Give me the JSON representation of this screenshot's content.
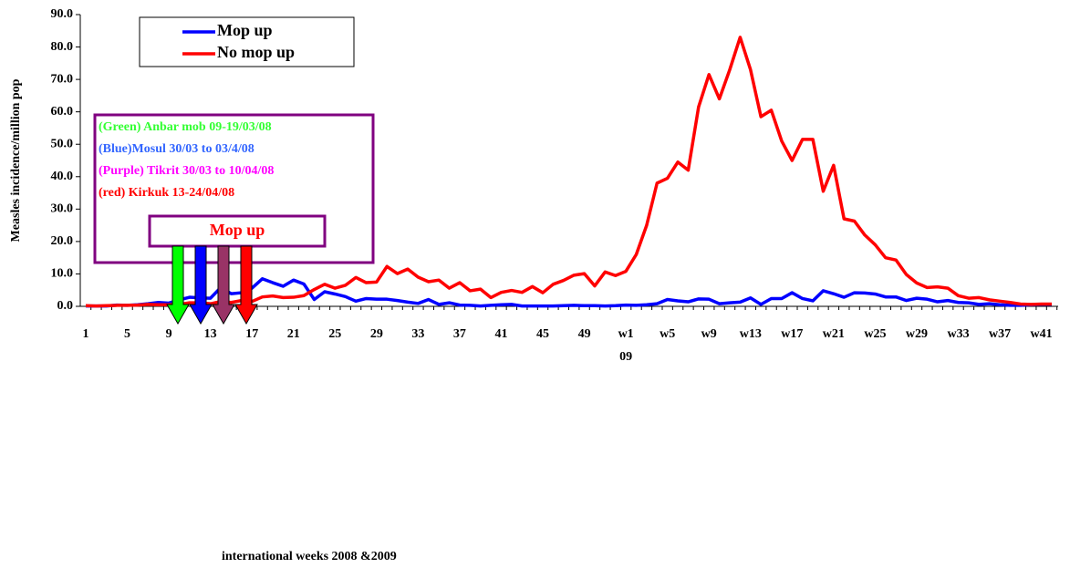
{
  "chart_data": {
    "type": "line",
    "ylabel": "Measles incidence/million pop",
    "xlabel": "international weeks 2008 &2009",
    "year_label": "09",
    "categories": [
      "1",
      null,
      null,
      null,
      "5",
      null,
      null,
      null,
      "9",
      null,
      null,
      null,
      "13",
      null,
      null,
      null,
      "17",
      null,
      null,
      null,
      "21",
      null,
      null,
      null,
      "25",
      null,
      null,
      null,
      "29",
      null,
      null,
      null,
      "33",
      null,
      null,
      null,
      "37",
      null,
      null,
      null,
      "41",
      null,
      null,
      null,
      "45",
      null,
      null,
      null,
      "49",
      null,
      null,
      null,
      "w1",
      null,
      null,
      null,
      "w5",
      null,
      null,
      null,
      "w9",
      null,
      null,
      null,
      "w13",
      null,
      null,
      null,
      "w17",
      null,
      null,
      null,
      "w21",
      null,
      null,
      null,
      "w25",
      null,
      null,
      null,
      "w29",
      null,
      null,
      null,
      "w33",
      null,
      null,
      null,
      "w37",
      null,
      null,
      null,
      "w41",
      null
    ],
    "series": [
      {
        "name": "Mop up",
        "color": "#0000ff",
        "values": [
          0.1,
          0.1,
          0.1,
          0.4,
          0.3,
          0.5,
          0.8,
          1.2,
          1,
          2,
          2.8,
          2.6,
          2.5,
          5.8,
          3.9,
          4.2,
          5.6,
          8.5,
          7.3,
          6.2,
          8.1,
          6.9,
          2.1,
          4.5,
          3.8,
          3,
          1.6,
          2.4,
          2.2,
          2.2,
          1.8,
          1.3,
          0.9,
          2.1,
          0.6,
          1.1,
          0.4,
          0.3,
          0.1,
          0.3,
          0.5,
          0.6,
          0.1,
          0.1,
          0.1,
          0.1,
          0.2,
          0.3,
          0.2,
          0.2,
          0.1,
          0.2,
          0.4,
          0.3,
          0.5,
          0.8,
          2.1,
          1.7,
          1.4,
          2.3,
          2.2,
          0.8,
          1.1,
          1.3,
          2.6,
          0.6,
          2.4,
          2.4,
          4.2,
          2.4,
          1.7,
          4.8,
          3.9,
          2.8,
          4.2,
          4.1,
          3.8,
          2.9,
          2.9,
          1.8,
          2.5,
          2.2,
          1.4,
          1.8,
          1.2,
          1.1,
          0.6,
          0.8,
          0.5,
          0.3,
          0.3,
          0.5,
          0.6,
          0.6
        ]
      },
      {
        "name": "No mop up",
        "color": "#ff0000",
        "values": [
          0.2,
          0.1,
          0.2,
          0.3,
          0.3,
          0.4,
          0.6,
          0.5,
          0.5,
          0.6,
          1.1,
          1.1,
          0.8,
          1.5,
          1.2,
          1.8,
          1.5,
          2.9,
          3.2,
          2.7,
          2.8,
          3.3,
          5.2,
          6.8,
          5.6,
          6.5,
          8.9,
          7.3,
          7.5,
          12.3,
          10.1,
          11.5,
          9,
          7.6,
          8.1,
          5.6,
          7.3,
          4.8,
          5.3,
          2.7,
          4.3,
          4.9,
          4.3,
          6.1,
          4.2,
          6.8,
          8,
          9.6,
          10.1,
          6.3,
          10.6,
          9.5,
          10.8,
          16,
          25,
          38,
          39.5,
          44.5,
          42,
          61.5,
          71.5,
          64,
          73,
          83,
          73,
          58.5,
          60.5,
          51,
          45,
          51.5,
          51.5,
          35.5,
          43.5,
          27,
          26.3,
          22,
          19,
          15,
          14.3,
          9.8,
          7.2,
          5.8,
          6,
          5.6,
          3.3,
          2.5,
          2.7,
          2,
          1.6,
          1.2,
          0.7,
          0.6,
          0.7,
          0.7
        ]
      }
    ],
    "ylim": [
      0,
      90
    ],
    "yticks": [
      {
        "value": 0,
        "label": "0.0"
      },
      {
        "value": 10,
        "label": "10.0"
      },
      {
        "value": 20,
        "label": "20.0"
      },
      {
        "value": 30,
        "label": "30.0"
      },
      {
        "value": 40,
        "label": "40.0"
      },
      {
        "value": 50,
        "label": "50.0"
      },
      {
        "value": 60,
        "label": "60.0"
      },
      {
        "value": 70,
        "label": "70.0"
      },
      {
        "value": 80,
        "label": "80.0"
      },
      {
        "value": 90,
        "label": "90.0"
      }
    ],
    "annotations": [
      {
        "text": "(Green) Anbar mob 09-19/03/08",
        "color": "#33ff33"
      },
      {
        "text": "(Blue)Mosul 30/03 to 03/4/08",
        "color": "#3366ff"
      },
      {
        "text": "(Purple) Tikrit 30/03 to 10/04/08",
        "color": "#ff00ff"
      },
      {
        "text": "(red) Kirkuk 13-24/04/08",
        "color": "#ff0000"
      }
    ],
    "mop_box": {
      "text": "Mop up",
      "color": "#ff0000"
    },
    "arrows": [
      "#00ff00",
      "#0000ff",
      "#993366",
      "#ff0000"
    ]
  }
}
